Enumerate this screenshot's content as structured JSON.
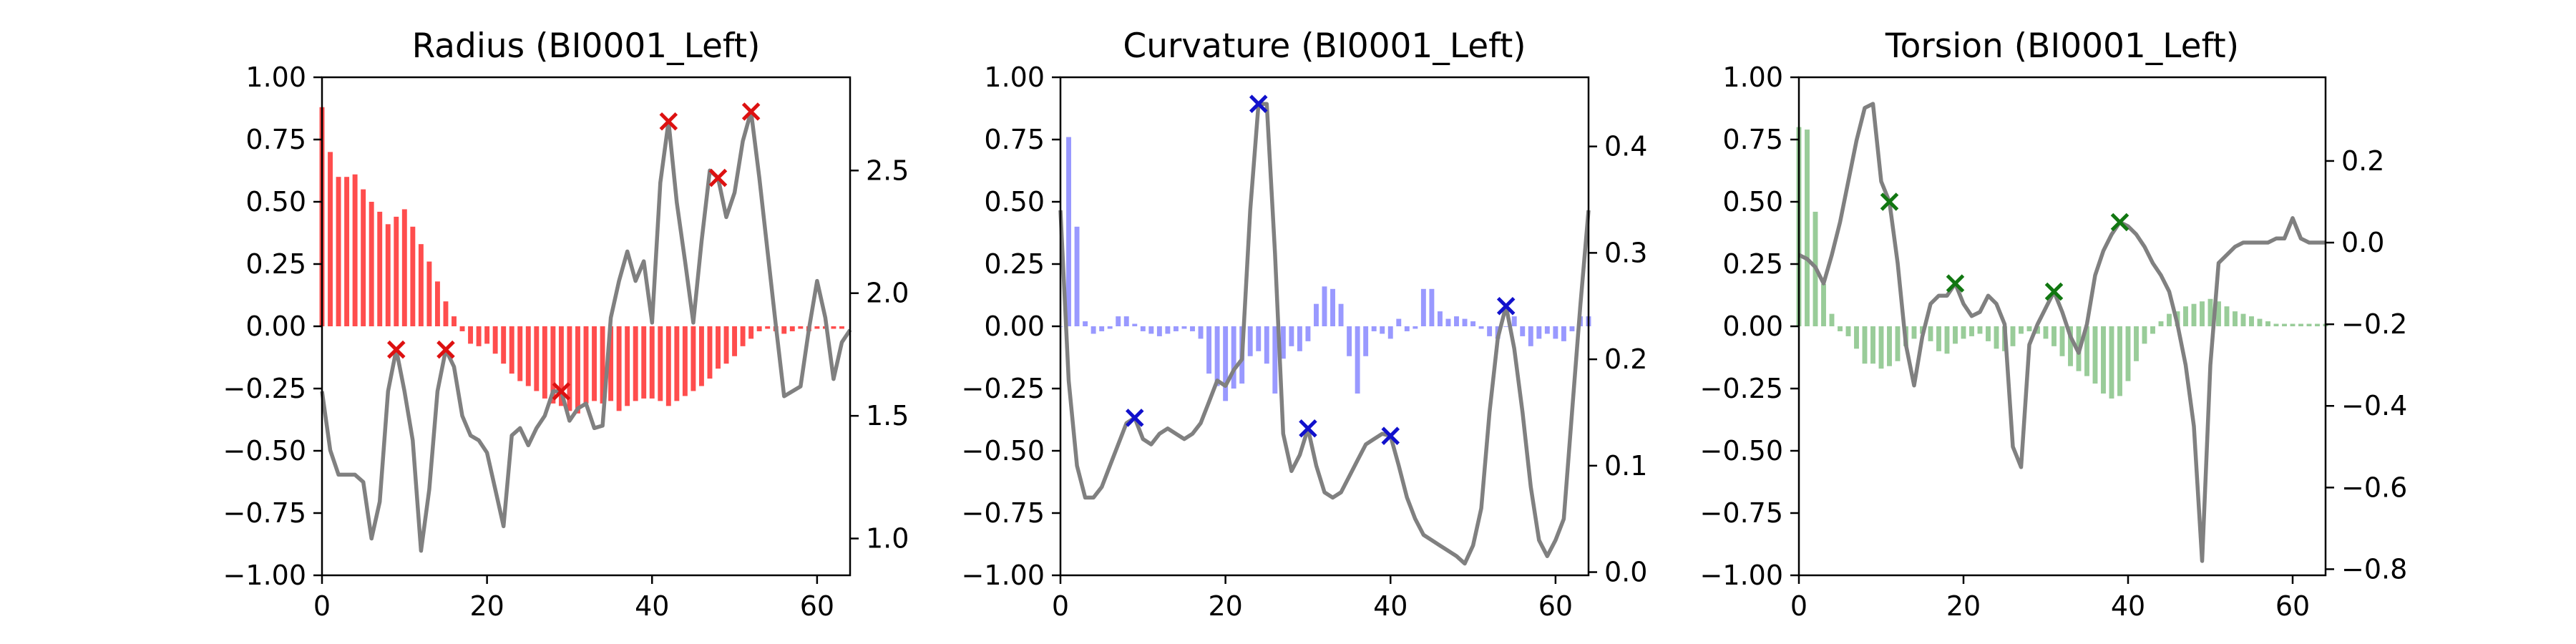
{
  "chart_data": [
    {
      "type": "bar",
      "title": "Radius (BI0001_Left)",
      "color": "#ff4d4d",
      "xlim": [
        0,
        64
      ],
      "ylim": [
        -1.0,
        1.0
      ],
      "y2lim": [
        0.85,
        2.88
      ],
      "xticks": [
        "0",
        "20",
        "40",
        "60"
      ],
      "yticks": [
        "−1.00",
        "−0.75",
        "−0.50",
        "−0.25",
        "0.00",
        "0.25",
        "0.50",
        "0.75",
        "1.00"
      ],
      "y2ticks": [
        {
          "v": 1.0,
          "label": "1.0"
        },
        {
          "v": 1.5,
          "label": "1.5"
        },
        {
          "v": 2.0,
          "label": "2.0"
        },
        {
          "v": 2.5,
          "label": "2.5"
        }
      ],
      "bars": [
        0.88,
        0.7,
        0.6,
        0.6,
        0.61,
        0.55,
        0.5,
        0.46,
        0.41,
        0.44,
        0.47,
        0.4,
        0.33,
        0.26,
        0.18,
        0.1,
        0.04,
        -0.02,
        -0.07,
        -0.08,
        -0.07,
        -0.11,
        -0.15,
        -0.19,
        -0.22,
        -0.24,
        -0.26,
        -0.29,
        -0.31,
        -0.32,
        -0.34,
        -0.35,
        -0.31,
        -0.3,
        -0.31,
        -0.3,
        -0.34,
        -0.32,
        -0.3,
        -0.29,
        -0.29,
        -0.3,
        -0.32,
        -0.3,
        -0.28,
        -0.26,
        -0.24,
        -0.21,
        -0.17,
        -0.15,
        -0.12,
        -0.08,
        -0.05,
        -0.02,
        -0.01,
        -0.02,
        -0.03,
        -0.02,
        -0.01,
        -0.02,
        -0.01,
        -0.01,
        -0.01,
        -0.01
      ],
      "line": [
        1.6,
        1.36,
        1.26,
        1.26,
        1.26,
        1.23,
        1.0,
        1.15,
        1.6,
        1.77,
        1.6,
        1.4,
        0.95,
        1.2,
        1.6,
        1.77,
        1.7,
        1.5,
        1.42,
        1.4,
        1.35,
        1.2,
        1.05,
        1.42,
        1.45,
        1.38,
        1.45,
        1.5,
        1.6,
        1.6,
        1.48,
        1.53,
        1.55,
        1.45,
        1.46,
        1.9,
        2.05,
        2.17,
        2.05,
        2.13,
        1.88,
        2.45,
        2.7,
        2.37,
        2.13,
        1.88,
        2.21,
        2.5,
        2.47,
        2.31,
        2.41,
        2.62,
        2.74,
        2.47,
        2.17,
        1.87,
        1.58,
        1.6,
        1.62,
        1.85,
        2.05,
        1.9,
        1.65,
        1.8,
        1.85
      ],
      "markers": [
        9,
        15,
        29,
        42,
        48,
        52
      ],
      "marker_color": "#dd1111"
    },
    {
      "type": "bar",
      "title": "Curvature (BI0001_Left)",
      "color": "#9999ff",
      "xlim": [
        0,
        64
      ],
      "ylim": [
        -1.0,
        1.0
      ],
      "y2lim": [
        -0.003,
        0.465
      ],
      "xticks": [
        "0",
        "20",
        "40",
        "60"
      ],
      "yticks": [
        "−1.00",
        "−0.75",
        "−0.50",
        "−0.25",
        "0.00",
        "0.25",
        "0.50",
        "0.75",
        "1.00"
      ],
      "y2ticks": [
        {
          "v": 0.0,
          "label": "0.0"
        },
        {
          "v": 0.1,
          "label": "0.1"
        },
        {
          "v": 0.2,
          "label": "0.2"
        },
        {
          "v": 0.3,
          "label": "0.3"
        },
        {
          "v": 0.4,
          "label": "0.4"
        }
      ],
      "bars": [
        0.0,
        0.76,
        0.4,
        0.02,
        -0.03,
        -0.02,
        -0.01,
        0.04,
        0.04,
        0.01,
        -0.02,
        -0.03,
        -0.04,
        -0.03,
        -0.02,
        -0.01,
        -0.02,
        -0.05,
        -0.19,
        -0.24,
        -0.3,
        -0.25,
        -0.23,
        -0.12,
        -0.1,
        -0.15,
        -0.27,
        -0.13,
        -0.08,
        -0.1,
        -0.06,
        0.09,
        0.16,
        0.15,
        0.09,
        -0.12,
        -0.27,
        -0.12,
        -0.02,
        -0.03,
        -0.05,
        0.03,
        -0.02,
        -0.01,
        0.15,
        0.15,
        0.06,
        0.03,
        0.04,
        0.03,
        0.02,
        -0.01,
        -0.04,
        -0.05,
        0.0,
        0.04,
        -0.04,
        -0.08,
        -0.05,
        -0.03,
        -0.05,
        -0.06,
        -0.02,
        0.04,
        0.04
      ],
      "line": [
        0.34,
        0.18,
        0.1,
        0.07,
        0.07,
        0.08,
        0.1,
        0.12,
        0.14,
        0.145,
        0.125,
        0.12,
        0.13,
        0.135,
        0.13,
        0.125,
        0.13,
        0.14,
        0.16,
        0.18,
        0.175,
        0.19,
        0.2,
        0.34,
        0.44,
        0.44,
        0.3,
        0.13,
        0.095,
        0.11,
        0.135,
        0.1,
        0.075,
        0.07,
        0.075,
        0.09,
        0.105,
        0.12,
        0.125,
        0.13,
        0.128,
        0.1,
        0.07,
        0.05,
        0.035,
        0.03,
        0.025,
        0.02,
        0.015,
        0.008,
        0.025,
        0.06,
        0.15,
        0.22,
        0.25,
        0.21,
        0.15,
        0.08,
        0.03,
        0.015,
        0.03,
        0.05,
        0.15,
        0.25,
        0.34
      ],
      "markers": [
        9,
        24,
        30,
        40,
        54
      ],
      "marker_color": "#1111cc"
    },
    {
      "type": "bar",
      "title": "Torsion (BI0001_Left)",
      "color": "#99cc99",
      "xlim": [
        0,
        64
      ],
      "ylim": [
        -1.0,
        1.0
      ],
      "y2lim": [
        -0.815,
        0.405
      ],
      "xticks": [
        "0",
        "20",
        "40",
        "60"
      ],
      "yticks": [
        "−1.00",
        "−0.75",
        "−0.50",
        "−0.25",
        "0.00",
        "0.25",
        "0.50",
        "0.75",
        "1.00"
      ],
      "y2ticks": [
        {
          "v": -0.8,
          "label": "−0.8"
        },
        {
          "v": -0.6,
          "label": "−0.6"
        },
        {
          "v": -0.4,
          "label": "−0.4"
        },
        {
          "v": -0.2,
          "label": "−0.2"
        },
        {
          "v": 0.0,
          "label": "0.0"
        },
        {
          "v": 0.2,
          "label": "0.2"
        }
      ],
      "bars": [
        0.8,
        0.79,
        0.46,
        0.17,
        0.05,
        -0.02,
        -0.04,
        -0.09,
        -0.15,
        -0.15,
        -0.17,
        -0.16,
        -0.14,
        -0.08,
        -0.05,
        -0.03,
        -0.06,
        -0.1,
        -0.11,
        -0.07,
        -0.05,
        -0.04,
        -0.03,
        -0.06,
        -0.09,
        -0.1,
        -0.08,
        -0.03,
        -0.02,
        -0.03,
        -0.05,
        -0.08,
        -0.12,
        -0.16,
        -0.18,
        -0.2,
        -0.23,
        -0.27,
        -0.29,
        -0.28,
        -0.22,
        -0.14,
        -0.07,
        -0.03,
        0.02,
        0.05,
        0.06,
        0.08,
        0.09,
        0.1,
        0.11,
        0.1,
        0.08,
        0.06,
        0.05,
        0.04,
        0.03,
        0.02,
        0.01,
        0.01,
        0.01,
        0.01,
        0.01,
        0.01,
        0.01
      ],
      "line": [
        -0.03,
        -0.04,
        -0.06,
        -0.1,
        -0.03,
        0.05,
        0.15,
        0.25,
        0.33,
        0.34,
        0.15,
        0.1,
        -0.05,
        -0.25,
        -0.35,
        -0.23,
        -0.15,
        -0.13,
        -0.13,
        -0.1,
        -0.15,
        -0.18,
        -0.17,
        -0.13,
        -0.15,
        -0.2,
        -0.5,
        -0.55,
        -0.25,
        -0.2,
        -0.16,
        -0.12,
        -0.17,
        -0.23,
        -0.27,
        -0.2,
        -0.08,
        -0.02,
        0.02,
        0.05,
        0.04,
        0.02,
        -0.01,
        -0.05,
        -0.08,
        -0.12,
        -0.2,
        -0.3,
        -0.45,
        -0.78,
        -0.3,
        -0.05,
        -0.03,
        -0.01,
        0.0,
        0.0,
        0.0,
        0.0,
        0.01,
        0.01,
        0.06,
        0.01,
        0.0,
        0.0,
        0.0
      ],
      "markers": [
        11,
        19,
        31,
        39
      ],
      "marker_color": "#117711"
    }
  ]
}
